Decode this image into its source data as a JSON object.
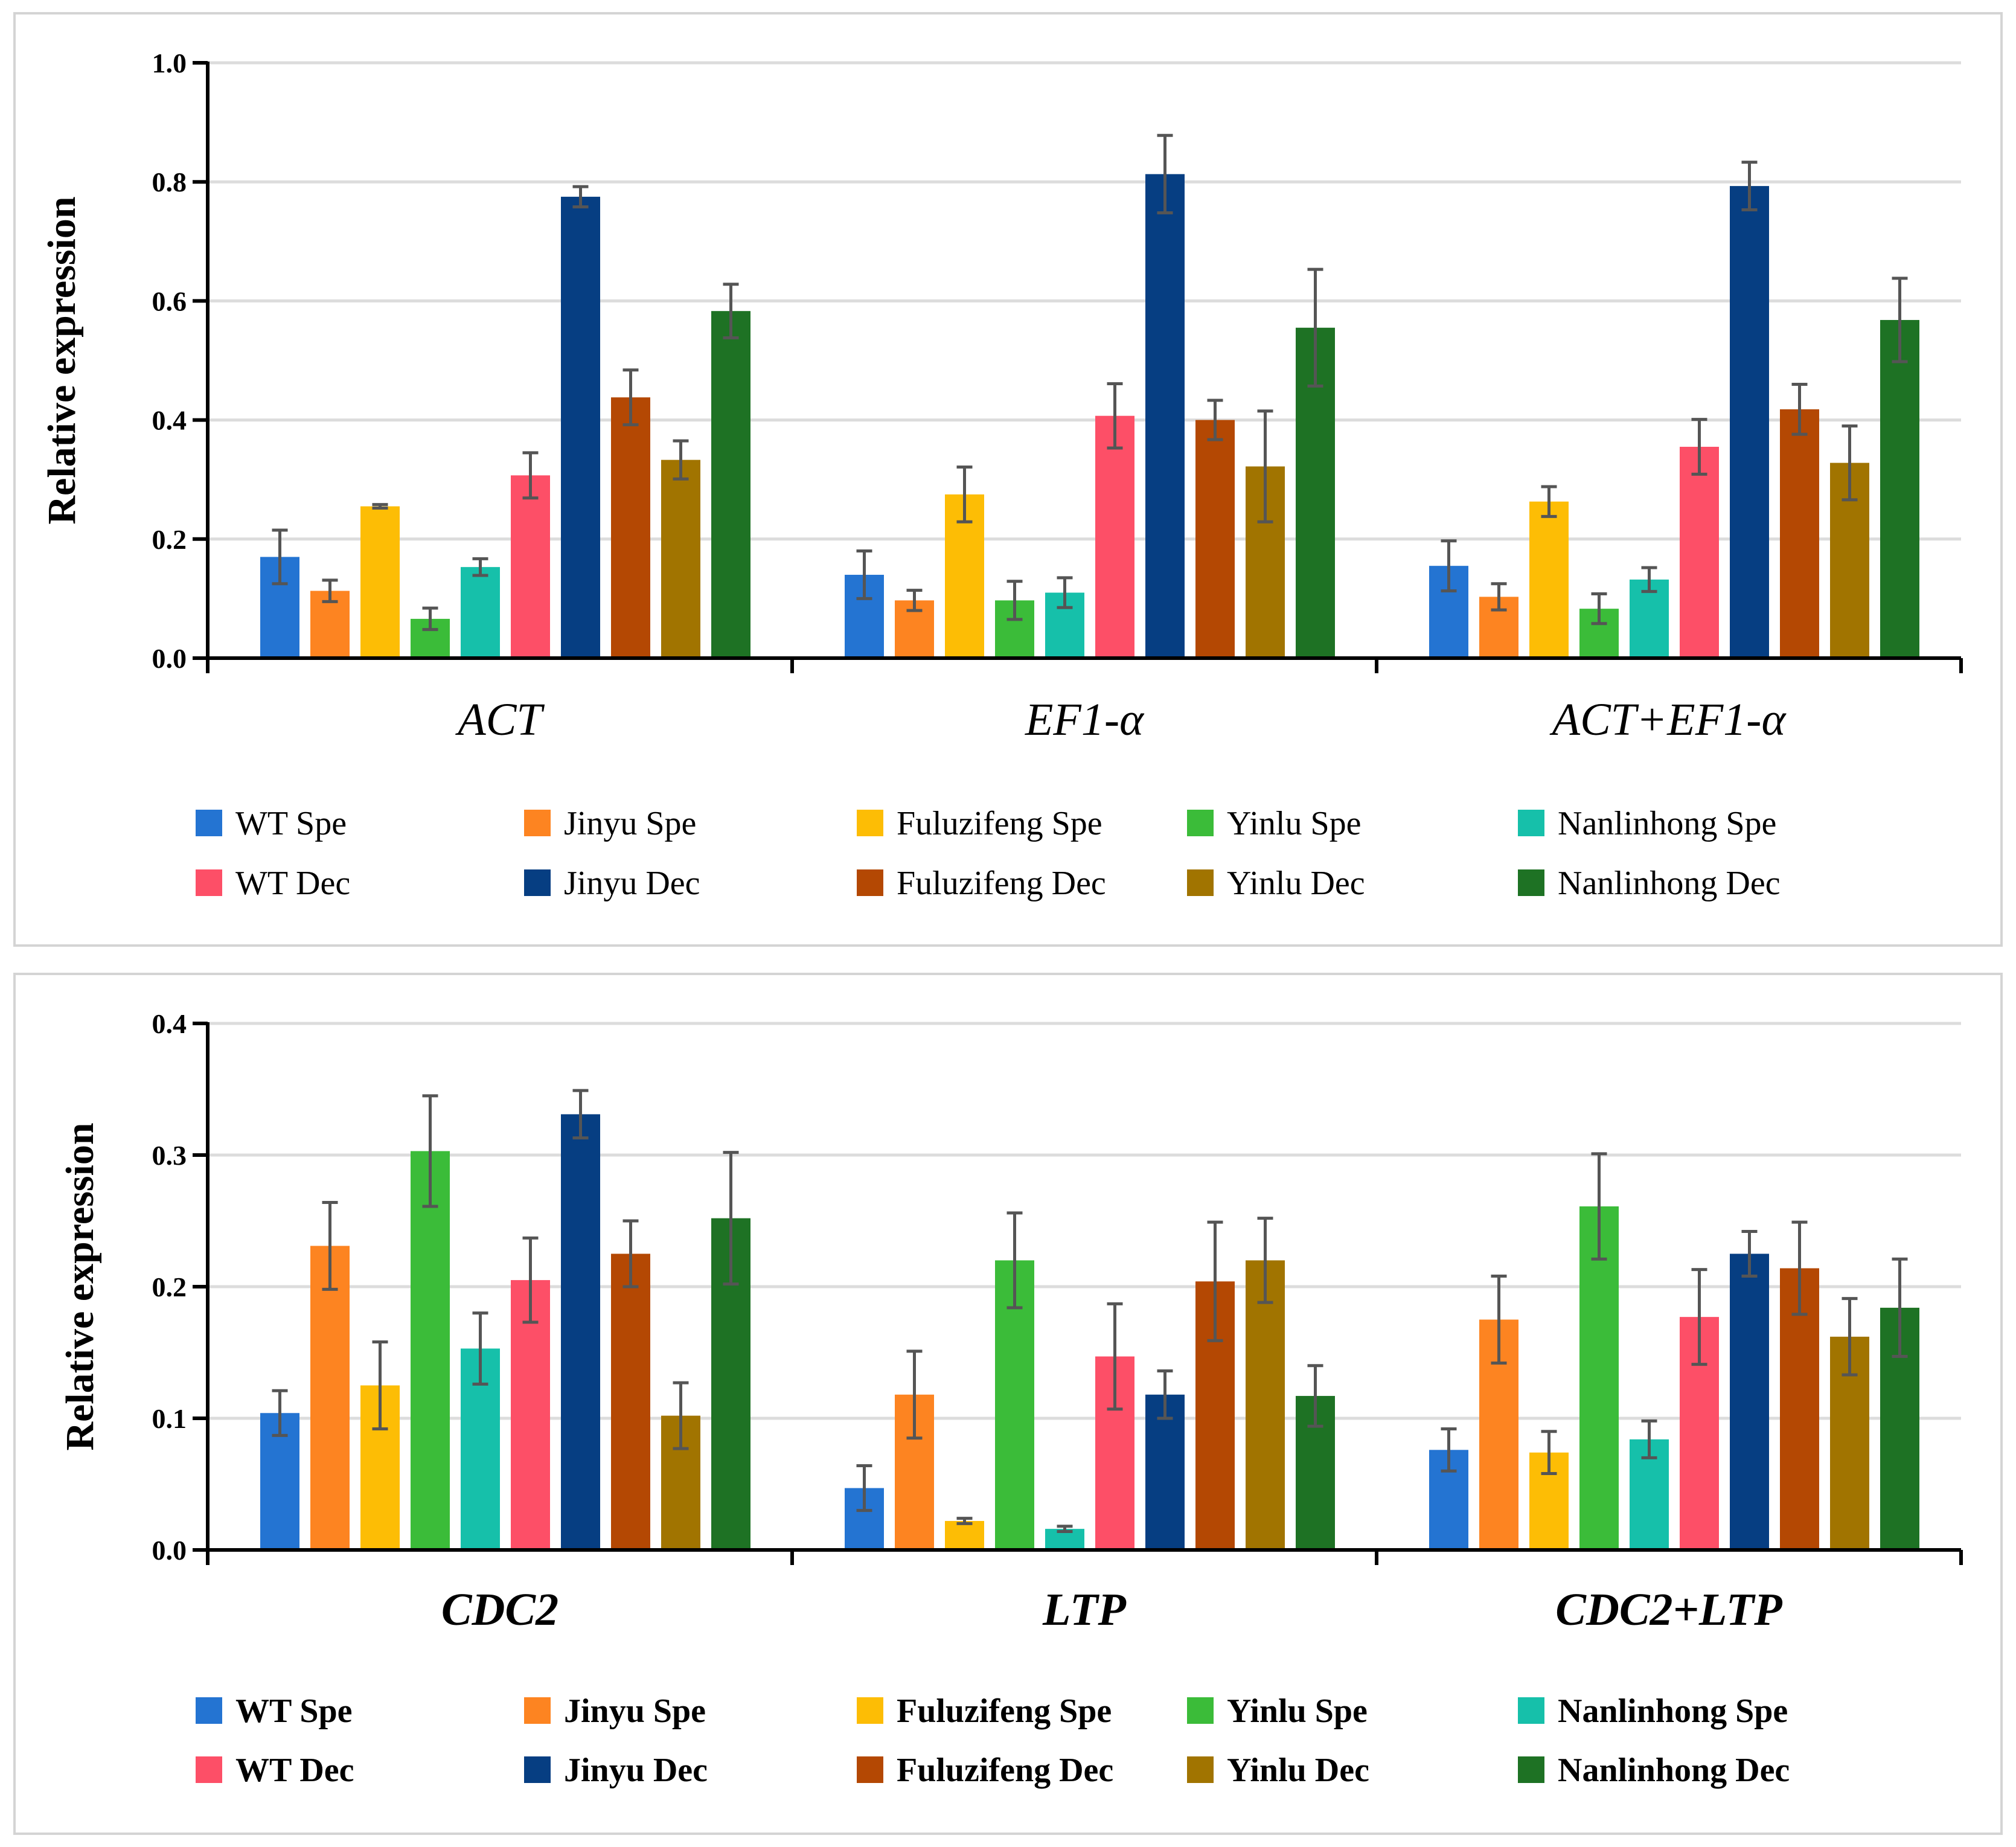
{
  "chart_data": [
    {
      "type": "bar",
      "title": "",
      "xlabel": "",
      "ylabel": "Relative expression",
      "ylim": [
        0,
        1.0
      ],
      "yticks": [
        "0.0",
        "0.2",
        "0.4",
        "0.6",
        "0.8",
        "1.0"
      ],
      "grid": true,
      "legend_position": "bottom",
      "categories": [
        "ACT",
        "EF1-α",
        "ACT+EF1-α"
      ],
      "series": [
        {
          "name": "WT Spe",
          "color": "#2474d2",
          "values": [
            0.17,
            0.14,
            0.155
          ],
          "errors": [
            0.045,
            0.04,
            0.042
          ]
        },
        {
          "name": "Jinyu Spe",
          "color": "#fd8421",
          "values": [
            0.113,
            0.097,
            0.103
          ],
          "errors": [
            0.018,
            0.017,
            0.022
          ]
        },
        {
          "name": "Fuluzifeng Spe",
          "color": "#fdbd05",
          "values": [
            0.255,
            0.275,
            0.263
          ],
          "errors": [
            0.003,
            0.046,
            0.025
          ]
        },
        {
          "name": "Yinlu Spe",
          "color": "#3bbc39",
          "values": [
            0.066,
            0.097,
            0.083
          ],
          "errors": [
            0.018,
            0.032,
            0.025
          ]
        },
        {
          "name": "Nanlinhong Spe",
          "color": "#16c0aa",
          "values": [
            0.153,
            0.11,
            0.132
          ],
          "errors": [
            0.014,
            0.025,
            0.02
          ]
        },
        {
          "name": "WT Dec",
          "color": "#fd4f67",
          "values": [
            0.307,
            0.407,
            0.355
          ],
          "errors": [
            0.038,
            0.054,
            0.046
          ]
        },
        {
          "name": "Jinyu  Dec",
          "color": "#063e82",
          "values": [
            0.775,
            0.813,
            0.793
          ],
          "errors": [
            0.017,
            0.065,
            0.04
          ]
        },
        {
          "name": "Fuluzifeng Dec",
          "color": "#b44803",
          "values": [
            0.438,
            0.4,
            0.418
          ],
          "errors": [
            0.046,
            0.033,
            0.042
          ]
        },
        {
          "name": "Yinlu Dec",
          "color": "#a17400",
          "values": [
            0.333,
            0.322,
            0.328
          ],
          "errors": [
            0.032,
            0.093,
            0.062
          ]
        },
        {
          "name": "Nanlinhong Dec",
          "color": "#1e7224",
          "values": [
            0.583,
            0.555,
            0.568
          ],
          "errors": [
            0.045,
            0.098,
            0.07
          ]
        }
      ]
    },
    {
      "type": "bar",
      "title": "",
      "xlabel": "",
      "ylabel": "Relative expression",
      "ylim": [
        0,
        0.4
      ],
      "yticks": [
        "0.0",
        "0.1",
        "0.2",
        "0.3",
        "0.4"
      ],
      "grid": true,
      "legend_position": "bottom",
      "categories": [
        "CDC2",
        "LTP",
        "CDC2+LTP"
      ],
      "series": [
        {
          "name": "WT Spe",
          "color": "#2474d2",
          "values": [
            0.104,
            0.047,
            0.076
          ],
          "errors": [
            0.017,
            0.017,
            0.016
          ]
        },
        {
          "name": "Jinyu Spe",
          "color": "#fd8421",
          "values": [
            0.231,
            0.118,
            0.175
          ],
          "errors": [
            0.033,
            0.033,
            0.033
          ]
        },
        {
          "name": "Fuluzifeng Spe",
          "color": "#fdbd05",
          "values": [
            0.125,
            0.022,
            0.074
          ],
          "errors": [
            0.033,
            0.002,
            0.016
          ]
        },
        {
          "name": "Yinlu Spe",
          "color": "#3bbc39",
          "values": [
            0.303,
            0.22,
            0.261
          ],
          "errors": [
            0.042,
            0.036,
            0.04
          ]
        },
        {
          "name": "Nanlinhong Spe",
          "color": "#16c0aa",
          "values": [
            0.153,
            0.016,
            0.084
          ],
          "errors": [
            0.027,
            0.002,
            0.014
          ]
        },
        {
          "name": "WT Dec",
          "color": "#fd4f67",
          "values": [
            0.205,
            0.147,
            0.177
          ],
          "errors": [
            0.032,
            0.04,
            0.036
          ]
        },
        {
          "name": "Jinyu  Dec",
          "color": "#063e82",
          "values": [
            0.331,
            0.118,
            0.225
          ],
          "errors": [
            0.018,
            0.018,
            0.017
          ]
        },
        {
          "name": "Fuluzifeng Dec",
          "color": "#b44803",
          "values": [
            0.225,
            0.204,
            0.214
          ],
          "errors": [
            0.025,
            0.045,
            0.035
          ]
        },
        {
          "name": "Yinlu Dec",
          "color": "#a17400",
          "values": [
            0.102,
            0.22,
            0.162
          ],
          "errors": [
            0.025,
            0.032,
            0.029
          ]
        },
        {
          "name": "Nanlinhong Dec",
          "color": "#1e7224",
          "values": [
            0.252,
            0.117,
            0.184
          ],
          "errors": [
            0.05,
            0.023,
            0.037
          ]
        }
      ]
    }
  ]
}
